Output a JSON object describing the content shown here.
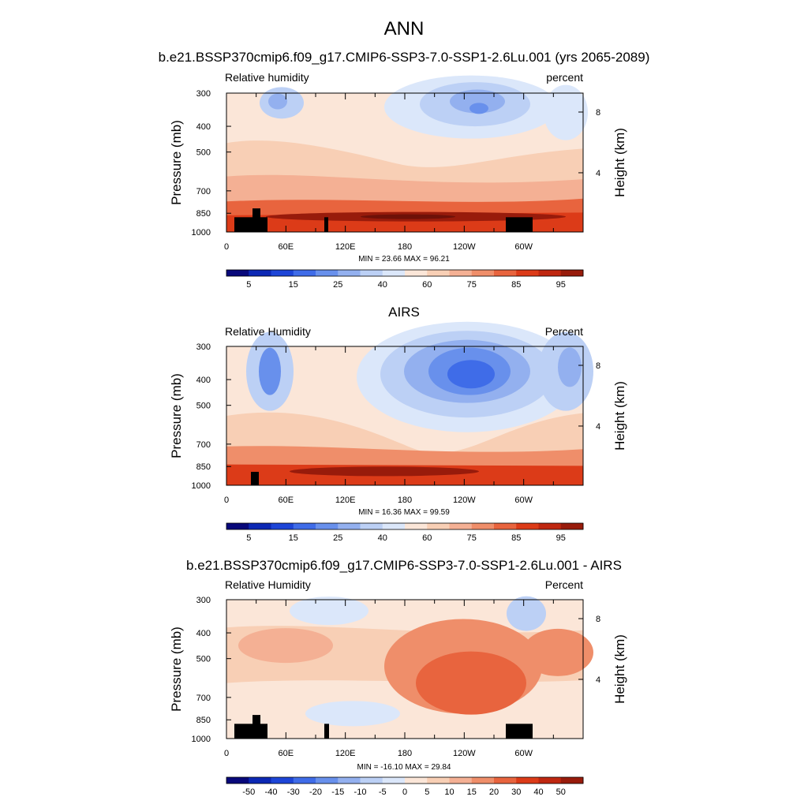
{
  "title": "ANN",
  "colors": {
    "blues": [
      "#08087a",
      "#0c28b4",
      "#1d45d7",
      "#3f6ce8",
      "#6890ec",
      "#93b0ef",
      "#bcd0f5",
      "#dbe7fa"
    ],
    "reds": [
      "#fbe6d8",
      "#f8cfb5",
      "#f4b094",
      "#ef8e6a",
      "#e8643e",
      "#dc3b18",
      "#bf2710",
      "#981b0b",
      "#6e1108"
    ],
    "terrain": "#000000"
  },
  "chart_data": [
    {
      "type": "heatmap",
      "title": "b.e21.BSSP370cmip6.f09_g17.CMIP6-SSP3-7.0-SSP1-2.6Lu.001 (yrs 2065-2089)",
      "left_label": "Relative humidity",
      "right_label": "percent",
      "ylabel": "Pressure (mb)",
      "y2label": "Height (km)",
      "xtick_labels": [
        "0",
        "60E",
        "120E",
        "180",
        "120W",
        "60W"
      ],
      "ytick_labels": [
        "300",
        "400",
        "500",
        "700",
        "850",
        "1000"
      ],
      "y2tick_labels": [
        "4",
        "8"
      ],
      "stats": "MIN =  23.66  MAX =  96.21",
      "colorbar_labels": [
        "5",
        "15",
        "25",
        "40",
        "60",
        "75",
        "85",
        "95"
      ],
      "ylim": [
        1000,
        300
      ],
      "min": 23.66,
      "max": 96.21
    },
    {
      "type": "heatmap",
      "title": "AIRS",
      "left_label": "Relative Humidity",
      "right_label": "Percent",
      "ylabel": "Pressure (mb)",
      "y2label": "Height (km)",
      "xtick_labels": [
        "0",
        "60E",
        "120E",
        "180",
        "120W",
        "60W"
      ],
      "ytick_labels": [
        "300",
        "400",
        "500",
        "700",
        "850",
        "1000"
      ],
      "y2tick_labels": [
        "4",
        "8"
      ],
      "stats": "MIN =  16.36  MAX =  99.59",
      "colorbar_labels": [
        "5",
        "15",
        "25",
        "40",
        "60",
        "75",
        "85",
        "95"
      ],
      "ylim": [
        1000,
        300
      ],
      "min": 16.36,
      "max": 99.59
    },
    {
      "type": "heatmap",
      "title": "b.e21.BSSP370cmip6.f09_g17.CMIP6-SSP3-7.0-SSP1-2.6Lu.001 - AIRS",
      "left_label": "Relative Humidity",
      "right_label": "Percent",
      "ylabel": "Pressure (mb)",
      "y2label": "Height (km)",
      "xtick_labels": [
        "0",
        "60E",
        "120E",
        "180",
        "120W",
        "60W"
      ],
      "ytick_labels": [
        "300",
        "400",
        "500",
        "700",
        "850",
        "1000"
      ],
      "y2tick_labels": [
        "4",
        "8"
      ],
      "stats": "MIN = -16.10  MAX =  29.84",
      "colorbar_labels": [
        "-50",
        "-40",
        "-30",
        "-20",
        "-15",
        "-10",
        "-5",
        "0",
        "5",
        "10",
        "15",
        "20",
        "30",
        "40",
        "50"
      ],
      "ylim": [
        1000,
        300
      ],
      "min": -16.1,
      "max": 29.84
    }
  ]
}
